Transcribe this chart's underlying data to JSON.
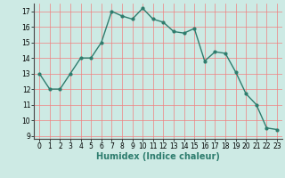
{
  "x": [
    0,
    1,
    2,
    3,
    4,
    5,
    6,
    7,
    8,
    9,
    10,
    11,
    12,
    13,
    14,
    15,
    16,
    17,
    18,
    19,
    20,
    21,
    22,
    23
  ],
  "y": [
    13,
    12,
    12,
    13,
    14,
    14,
    15,
    17,
    16.7,
    16.5,
    17.2,
    16.5,
    16.3,
    15.7,
    15.6,
    15.9,
    13.8,
    14.4,
    14.3,
    13.1,
    11.7,
    11.0,
    9.5,
    9.4
  ],
  "line_color": "#2e7d6e",
  "marker": "o",
  "marker_size": 2.0,
  "bg_color": "#cdeae4",
  "grid_color": "#f08080",
  "xlabel": "Humidex (Indice chaleur)",
  "ylim": [
    8.8,
    17.5
  ],
  "xlim": [
    -0.5,
    23.5
  ],
  "yticks": [
    9,
    10,
    11,
    12,
    13,
    14,
    15,
    16,
    17
  ],
  "xticks": [
    0,
    1,
    2,
    3,
    4,
    5,
    6,
    7,
    8,
    9,
    10,
    11,
    12,
    13,
    14,
    15,
    16,
    17,
    18,
    19,
    20,
    21,
    22,
    23
  ],
  "tick_fontsize": 5.5,
  "label_fontsize": 7,
  "line_width": 1.0
}
